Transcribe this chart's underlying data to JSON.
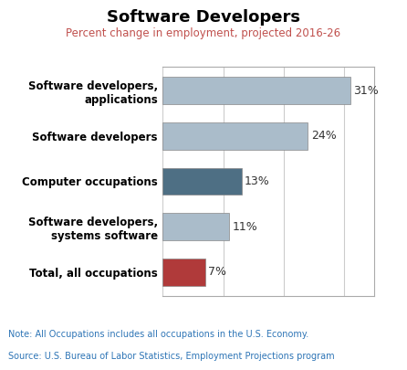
{
  "title": "Software Developers",
  "subtitle": "Percent change in employment, projected 2016-26",
  "categories": [
    "Total, all occupations",
    "Software developers,\nsystems software",
    "Computer occupations",
    "Software developers",
    "Software developers,\napplications"
  ],
  "values": [
    7,
    11,
    13,
    24,
    31
  ],
  "bar_colors": [
    "#b03a3a",
    "#aabcca",
    "#4e6f84",
    "#aabcca",
    "#aabcca"
  ],
  "label_values": [
    "7%",
    "11%",
    "13%",
    "24%",
    "31%"
  ],
  "note_line1": "Note: All Occupations includes all occupations in the U.S. Economy.",
  "note_line2": "Source: U.S. Bureau of Labor Statistics, Employment Projections program",
  "note_color": "#2e75b6",
  "title_color": "#000000",
  "subtitle_color": "#c0504d",
  "xlim": [
    0,
    35
  ],
  "figsize": [
    4.46,
    4.05
  ],
  "dpi": 100,
  "bar_height": 0.6,
  "bar_edge_color": "#888888",
  "bar_edge_width": 0.5,
  "grid_color": "#cccccc",
  "spine_color": "#aaaaaa"
}
